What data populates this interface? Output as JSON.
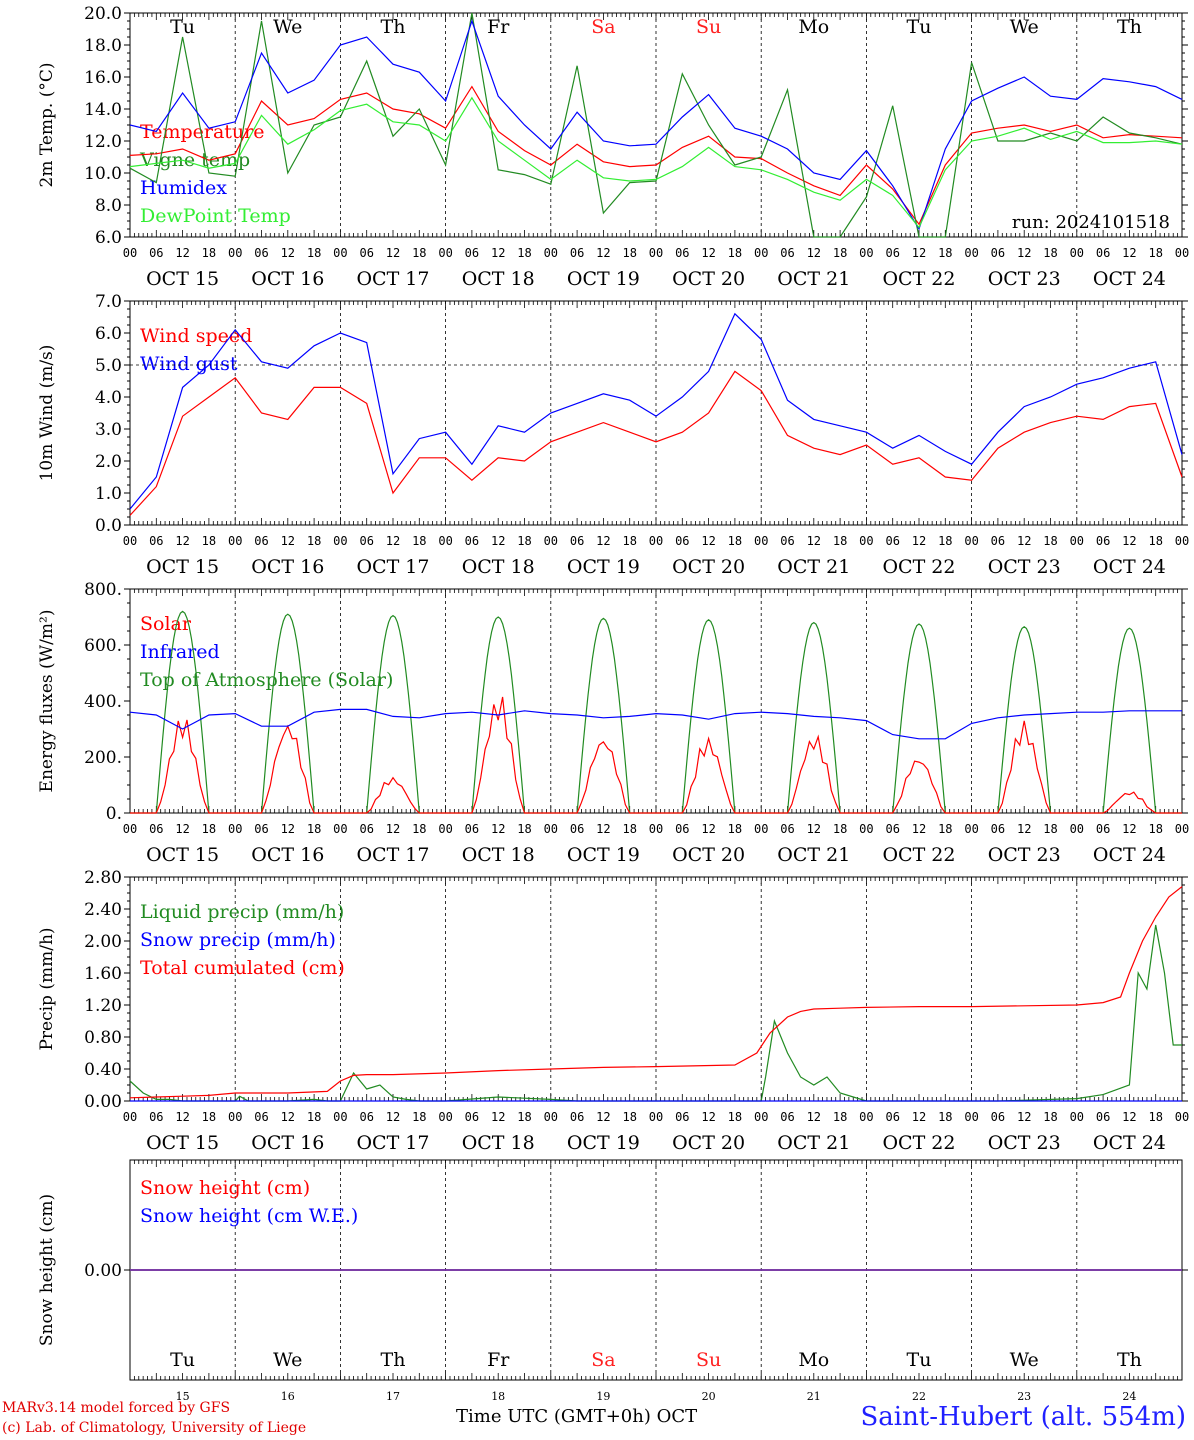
{
  "colors": {
    "red": "#ff0000",
    "dark_green": "#228b22",
    "blue": "#0000ff",
    "light_green": "#33ee33",
    "purple": "#7b3f9e",
    "weekend": "#ff2020"
  },
  "header": {
    "days": [
      {
        "label": "Tu",
        "weekend": false
      },
      {
        "label": "We",
        "weekend": false
      },
      {
        "label": "Th",
        "weekend": false
      },
      {
        "label": "Fr",
        "weekend": false
      },
      {
        "label": "Sa",
        "weekend": true
      },
      {
        "label": "Su",
        "weekend": true
      },
      {
        "label": "Mo",
        "weekend": false
      },
      {
        "label": "Tu",
        "weekend": false
      },
      {
        "label": "We",
        "weekend": false
      },
      {
        "label": "Th",
        "weekend": false
      }
    ],
    "dates": [
      "OCT 15",
      "OCT 16",
      "OCT 17",
      "OCT 18",
      "OCT 19",
      "OCT 20",
      "OCT 21",
      "OCT 22",
      "OCT 23",
      "OCT 24"
    ],
    "day_numbers": [
      "15",
      "16",
      "17",
      "18",
      "19",
      "20",
      "21",
      "22",
      "23",
      "24"
    ],
    "hour_labels": [
      "00",
      "06",
      "12",
      "18"
    ],
    "hour_end_label": "00"
  },
  "footer": {
    "model": "MARv3.14 model forced by GFS",
    "credit": "(c) Lab. of Climatology, University of Liege",
    "time_axis": "Time UTC (GMT+0h)",
    "month": "OCT",
    "station": "Saint-Hubert (alt. 554m)"
  },
  "chart_data": [
    {
      "type": "line",
      "ylabel": "2m Temp. (°C)",
      "ylim": [
        6.0,
        20.0
      ],
      "yticks": [
        "6.0",
        "8.0",
        "10.0",
        "12.0",
        "14.0",
        "16.0",
        "18.0",
        "20.0"
      ],
      "note": "run: 2024101518",
      "legend": [
        "Temperature",
        "Vigne temp",
        "Humidex",
        "DewPoint Temp"
      ],
      "x_hours_points": [
        0,
        6,
        12,
        18,
        24,
        30,
        36,
        42,
        48,
        54,
        60,
        66,
        72,
        78,
        84,
        90,
        96,
        102,
        108,
        114,
        120,
        126,
        132,
        138,
        144,
        150,
        156,
        162,
        168,
        174,
        180,
        186,
        192,
        198,
        204,
        210,
        216,
        222,
        228,
        234,
        240
      ],
      "series": [
        {
          "name": "Temperature",
          "color": "red",
          "values": [
            11.1,
            11.2,
            11.5,
            10.8,
            11.2,
            14.5,
            13.0,
            13.4,
            14.6,
            15.0,
            14.0,
            13.7,
            12.8,
            15.4,
            12.6,
            11.4,
            10.5,
            11.8,
            10.7,
            10.4,
            10.5,
            11.6,
            12.3,
            11.0,
            10.9,
            10.0,
            9.2,
            8.6,
            10.5,
            9.0,
            6.8,
            10.5,
            12.5,
            12.8,
            13.0,
            12.6,
            13.0,
            12.2,
            12.4,
            12.3,
            12.2
          ]
        },
        {
          "name": "Vigne temp",
          "color": "dark_green",
          "values": [
            10.3,
            9.4,
            18.5,
            10.0,
            9.8,
            19.5,
            10.0,
            13.0,
            13.5,
            17.0,
            12.3,
            14.0,
            10.5,
            20.0,
            10.2,
            9.9,
            9.3,
            16.7,
            7.5,
            9.4,
            9.5,
            16.2,
            13.0,
            10.5,
            11.0,
            15.2,
            6.0,
            5.5,
            8.5,
            14.2,
            5.2,
            6.0,
            16.9,
            12.0,
            12.0,
            12.5,
            12.0,
            13.5,
            12.5,
            12.2,
            11.8
          ]
        },
        {
          "name": "Humidex",
          "color": "blue",
          "values": [
            13.0,
            12.6,
            15.0,
            12.8,
            13.2,
            17.5,
            15.0,
            15.8,
            18.0,
            18.5,
            16.8,
            16.3,
            14.5,
            19.5,
            14.8,
            13.0,
            11.5,
            13.8,
            12.0,
            11.7,
            11.8,
            13.5,
            14.9,
            12.8,
            12.3,
            11.5,
            10.0,
            9.6,
            11.4,
            9.2,
            6.5,
            11.5,
            14.5,
            15.3,
            16.0,
            14.8,
            14.6,
            15.9,
            15.7,
            15.4,
            14.6
          ]
        },
        {
          "name": "DewPoint Temp",
          "color": "light_green",
          "values": [
            10.4,
            10.6,
            10.8,
            10.3,
            10.6,
            13.6,
            11.8,
            12.7,
            13.9,
            14.3,
            13.2,
            13.0,
            12.0,
            14.7,
            12.0,
            10.8,
            9.6,
            10.8,
            9.7,
            9.5,
            9.6,
            10.4,
            11.6,
            10.4,
            10.2,
            9.6,
            8.8,
            8.3,
            9.6,
            8.6,
            6.6,
            10.2,
            12.0,
            12.3,
            12.8,
            12.1,
            12.6,
            11.9,
            11.9,
            12.0,
            11.8
          ]
        }
      ]
    },
    {
      "type": "line",
      "ylabel": "10m Wind (m/s)",
      "ylim": [
        0.0,
        7.0
      ],
      "yticks": [
        "0.0",
        "1.0",
        "2.0",
        "3.0",
        "4.0",
        "5.0",
        "6.0",
        "7.0"
      ],
      "reference_line": 5.0,
      "legend": [
        "Wind speed",
        "Wind gust"
      ],
      "x_hours_points": [
        0,
        6,
        12,
        18,
        24,
        30,
        36,
        42,
        48,
        54,
        60,
        66,
        72,
        78,
        84,
        90,
        96,
        102,
        108,
        114,
        120,
        126,
        132,
        138,
        144,
        150,
        156,
        162,
        168,
        174,
        180,
        186,
        192,
        198,
        204,
        210,
        216,
        222,
        228,
        234,
        240
      ],
      "series": [
        {
          "name": "Wind speed",
          "color": "red",
          "values": [
            0.3,
            1.2,
            3.4,
            4.0,
            4.6,
            3.5,
            3.3,
            4.3,
            4.3,
            3.8,
            1.0,
            2.1,
            2.1,
            1.4,
            2.1,
            2.0,
            2.6,
            2.9,
            3.2,
            2.9,
            2.6,
            2.9,
            3.5,
            4.8,
            4.2,
            2.8,
            2.4,
            2.2,
            2.5,
            1.9,
            2.1,
            1.5,
            1.4,
            2.4,
            2.9,
            3.2,
            3.4,
            3.3,
            3.7,
            3.8,
            1.5
          ]
        },
        {
          "name": "Wind gust",
          "color": "blue",
          "values": [
            0.5,
            1.5,
            4.3,
            5.0,
            6.1,
            5.1,
            4.9,
            5.6,
            6.0,
            5.7,
            1.6,
            2.7,
            2.9,
            1.9,
            3.1,
            2.9,
            3.5,
            3.8,
            4.1,
            3.9,
            3.4,
            4.0,
            4.8,
            6.6,
            5.8,
            3.9,
            3.3,
            3.1,
            2.9,
            2.4,
            2.8,
            2.3,
            1.9,
            2.9,
            3.7,
            4.0,
            4.4,
            4.6,
            4.9,
            5.1,
            2.2
          ]
        }
      ]
    },
    {
      "type": "line",
      "ylabel": "Energy fluxes (W/m²)",
      "ylim": [
        0,
        800
      ],
      "yticks": [
        "0.",
        "200.",
        "400.",
        "600.",
        "800."
      ],
      "legend": [
        "Solar",
        "Infrared",
        "Top of Atmosphere (Solar)"
      ],
      "infrared_hours": [
        0,
        6,
        12,
        18,
        24,
        30,
        36,
        42,
        48,
        54,
        60,
        66,
        72,
        78,
        84,
        90,
        96,
        102,
        108,
        114,
        120,
        126,
        132,
        138,
        144,
        150,
        156,
        162,
        168,
        174,
        180,
        186,
        192,
        198,
        204,
        210,
        216,
        222,
        228,
        234,
        240
      ],
      "infrared_values": [
        360,
        350,
        300,
        350,
        355,
        310,
        310,
        360,
        370,
        370,
        345,
        340,
        355,
        360,
        350,
        365,
        355,
        350,
        340,
        345,
        355,
        350,
        335,
        355,
        360,
        355,
        345,
        340,
        330,
        280,
        265,
        265,
        320,
        340,
        350,
        355,
        360,
        360,
        365,
        365,
        365
      ],
      "toa_peaks": [
        720,
        710,
        705,
        700,
        695,
        690,
        680,
        675,
        665,
        660
      ],
      "solar_daily_peaks": [
        360,
        360,
        140,
        440,
        305,
        285,
        300,
        225,
        340,
        85
      ]
    },
    {
      "type": "line",
      "ylabel": "Precip (mm/h)",
      "ylim": [
        0.0,
        2.8
      ],
      "yticks": [
        "0.00",
        "0.40",
        "0.80",
        "1.20",
        "1.60",
        "2.00",
        "2.40",
        "2.80"
      ],
      "legend": [
        "Liquid precip (mm/h)",
        "Snow precip (mm/h)",
        "Total cumulated (cm)"
      ],
      "series": [
        {
          "name": "Liquid precip (mm/h)",
          "color": "dark_green",
          "x_hours": [
            0,
            3,
            6,
            9,
            12,
            18,
            24,
            25,
            27,
            30,
            36,
            42,
            45,
            48,
            51,
            54,
            57,
            60,
            63,
            66,
            72,
            84,
            96,
            102,
            108,
            144,
            145,
            147,
            150,
            153,
            156,
            159,
            162,
            165,
            168,
            174,
            180,
            198,
            216,
            222,
            228,
            230,
            232,
            234,
            236,
            238,
            240
          ],
          "values": [
            0.25,
            0.1,
            0.02,
            0.02,
            0.0,
            0.0,
            0.0,
            0.06,
            0.0,
            0.0,
            0.0,
            0.02,
            0.0,
            0.0,
            0.35,
            0.15,
            0.2,
            0.05,
            0.02,
            0.0,
            0.0,
            0.05,
            0.02,
            0.0,
            0.0,
            0.0,
            0.3,
            1.0,
            0.6,
            0.3,
            0.2,
            0.3,
            0.1,
            0.05,
            0.0,
            0.0,
            0.0,
            0.0,
            0.03,
            0.08,
            0.2,
            1.6,
            1.4,
            2.2,
            1.6,
            0.7,
            0.7
          ]
        },
        {
          "name": "Snow precip (mm/h)",
          "color": "blue",
          "x_hours": [
            0,
            240
          ],
          "values": [
            0.0,
            0.0
          ]
        },
        {
          "name": "Total cumulated (cm)",
          "color": "red",
          "x_hours": [
            0,
            6,
            12,
            18,
            24,
            36,
            45,
            48,
            51,
            54,
            60,
            72,
            84,
            96,
            108,
            120,
            138,
            143,
            146,
            150,
            153,
            156,
            162,
            168,
            180,
            192,
            204,
            216,
            222,
            226,
            228,
            231,
            234,
            237,
            240
          ],
          "values": [
            0.04,
            0.05,
            0.06,
            0.07,
            0.1,
            0.1,
            0.12,
            0.25,
            0.32,
            0.33,
            0.33,
            0.35,
            0.38,
            0.4,
            0.42,
            0.43,
            0.45,
            0.6,
            0.85,
            1.05,
            1.12,
            1.15,
            1.16,
            1.17,
            1.18,
            1.18,
            1.19,
            1.2,
            1.23,
            1.3,
            1.6,
            2.0,
            2.3,
            2.55,
            2.68
          ]
        }
      ]
    },
    {
      "type": "line",
      "ylabel": "Snow height (cm)",
      "ylim": [
        -1.0,
        1.0
      ],
      "yticks": [
        "0.00"
      ],
      "legend": [
        "Snow height (cm)",
        "Snow height (cm W.E.)"
      ],
      "series": [
        {
          "name": "Snow height (cm)",
          "color": "red",
          "x_hours": [
            0,
            240
          ],
          "values": [
            0.0,
            0.0
          ]
        },
        {
          "name": "Snow height (cm W.E.)",
          "color": "blue",
          "x_hours": [
            0,
            240
          ],
          "values": [
            0.0,
            0.0
          ]
        }
      ]
    }
  ]
}
